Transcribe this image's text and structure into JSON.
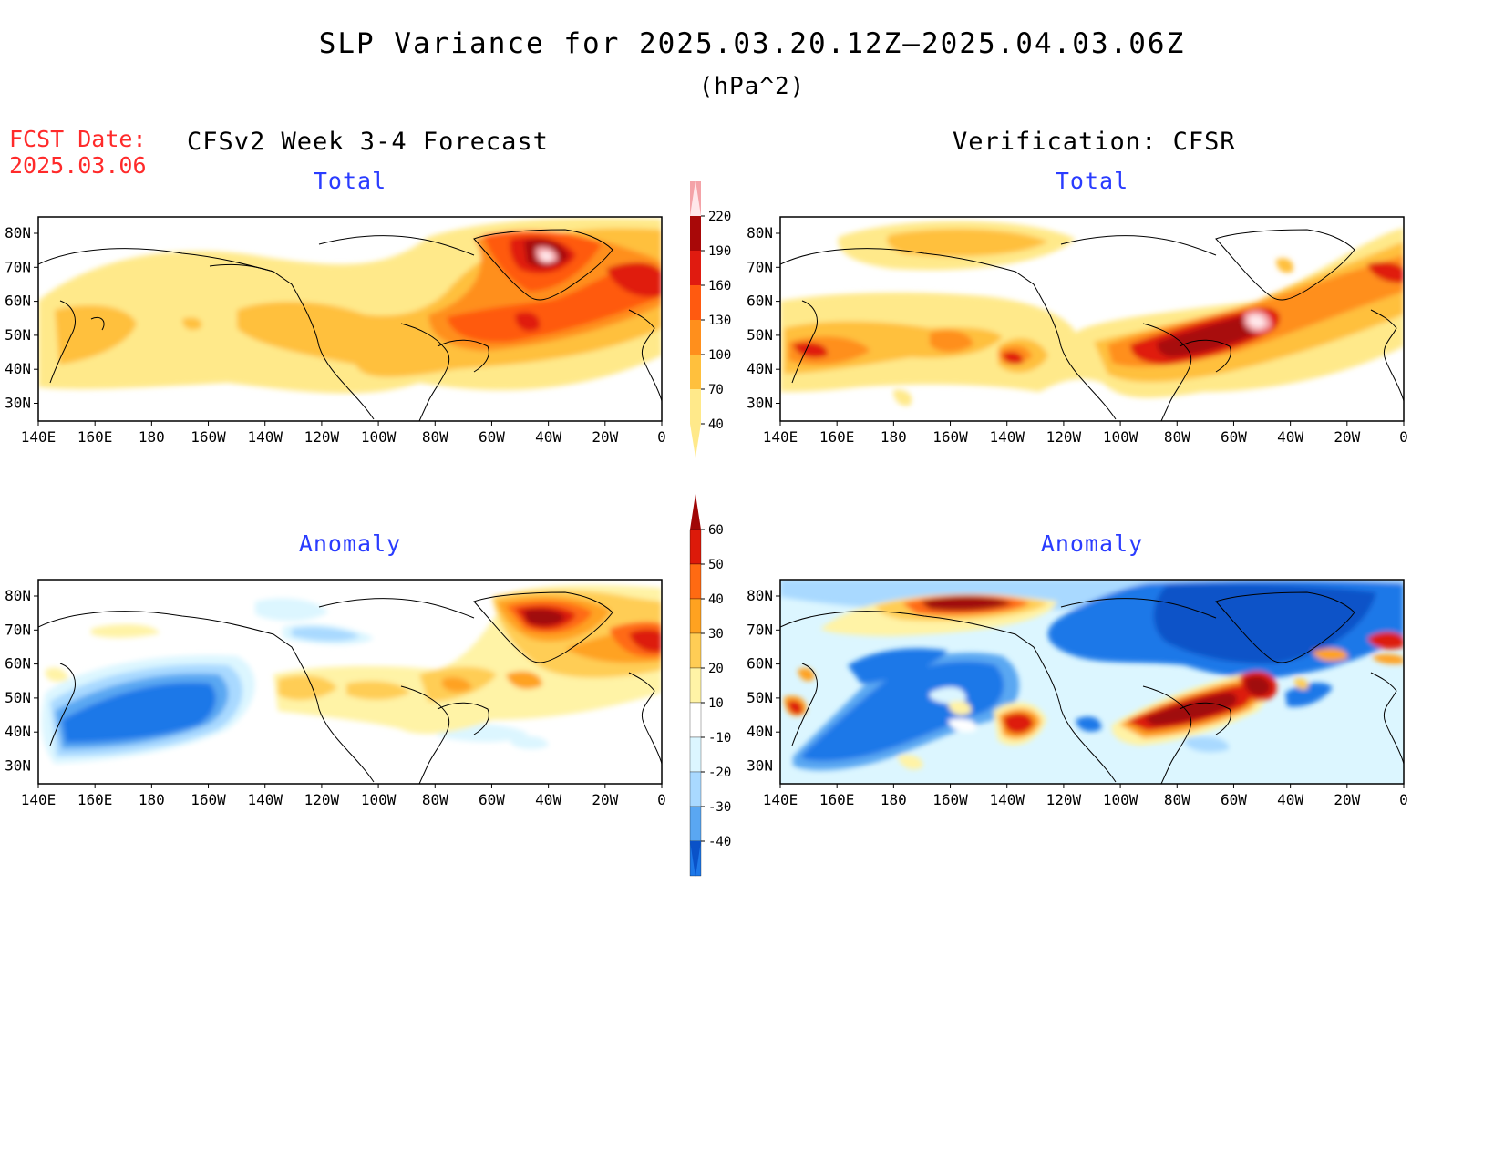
{
  "title": "SLP Variance for 2025.03.20.12Z—2025.04.03.06Z",
  "units": "(hPa^2)",
  "fcst_date_label": "FCST Date:",
  "fcst_date_value": "2025.03.06",
  "left_header": "CFSv2 Week 3-4 Forecast",
  "right_header": "Verification: CFSR",
  "panels": [
    {
      "id": "fcst-total",
      "title": "Total"
    },
    {
      "id": "verif-total",
      "title": "Total"
    },
    {
      "id": "fcst-anomaly",
      "title": "Anomaly"
    },
    {
      "id": "verif-anomaly",
      "title": "Anomaly"
    }
  ],
  "lat_labels": [
    "80N",
    "70N",
    "60N",
    "50N",
    "40N",
    "30N"
  ],
  "lon_labels": [
    "140E",
    "160E",
    "180",
    "160W",
    "140W",
    "120W",
    "100W",
    "80W",
    "60W",
    "40W",
    "20W",
    "0"
  ],
  "total_colorbar": {
    "levels": [
      "40",
      "70",
      "100",
      "130",
      "160",
      "190",
      "220"
    ],
    "colors": [
      "#ffe98a",
      "#ffc03d",
      "#ff8f1c",
      "#ff5a10",
      "#e01b10",
      "#a80808",
      "#f4a3a8",
      "#ffe7ea"
    ]
  },
  "anomaly_colorbar": {
    "levels": [
      "60",
      "50",
      "40",
      "30",
      "20",
      "10",
      "-10",
      "-20",
      "-30",
      "-40"
    ],
    "colors_top_to_bottom": [
      "#a00707",
      "#dd1a0a",
      "#ff6a12",
      "#ffa220",
      "#ffcd55",
      "#fff3a6",
      "#ffffff",
      "#dcf6ff",
      "#a9d9ff",
      "#5aa7f2",
      "#1e78e8",
      "#0a52c8"
    ]
  },
  "chart_data": [
    {
      "type": "heatmap",
      "panel": "CFSv2 Week 3-4 Forecast — Total",
      "units": "hPa^2",
      "lon_range": [
        "140E",
        "0"
      ],
      "lat_range": [
        "25N",
        "85N"
      ],
      "levels": [
        40,
        70,
        100,
        130,
        160,
        190,
        220
      ],
      "features": [
        {
          "region": "near 40W, 72N (Greenland)",
          "value_range": [
            190,
            250
          ]
        },
        {
          "region": "near 50W, 53N (Labrador Sea)",
          "value_range": [
            130,
            160
          ]
        },
        {
          "region": "North Atlantic 60W-0, 45N-70N",
          "value_range": [
            100,
            160
          ]
        },
        {
          "region": "North Pacific 150E-120W, 40N-55N",
          "value_range": [
            70,
            100
          ]
        }
      ]
    },
    {
      "type": "heatmap",
      "panel": "Verification: CFSR — Total",
      "units": "hPa^2",
      "lon_range": [
        "140E",
        "0"
      ],
      "lat_range": [
        "25N",
        "85N"
      ],
      "levels": [
        40,
        70,
        100,
        130,
        160,
        190,
        220
      ],
      "features": [
        {
          "region": "near 52W, 51N (Newfoundland)",
          "value_range": [
            190,
            250
          ]
        },
        {
          "region": "near 80W-60W, 45N",
          "value_range": [
            160,
            190
          ]
        },
        {
          "region": "near 170E, 45N",
          "value_range": [
            130,
            160
          ]
        },
        {
          "region": "near 150W-160W, 80N",
          "value_range": [
            70,
            100
          ]
        },
        {
          "region": "near 140W, 41N",
          "value_range": [
            130,
            160
          ]
        }
      ]
    },
    {
      "type": "heatmap",
      "panel": "CFSv2 Week 3-4 Forecast — Anomaly",
      "units": "hPa^2",
      "lon_range": [
        "140E",
        "0"
      ],
      "lat_range": [
        "25N",
        "85N"
      ],
      "levels": [
        -40,
        -30,
        -20,
        -10,
        10,
        20,
        30,
        40,
        50,
        60
      ],
      "features": [
        {
          "region": "North Pacific 150E-160W, 35N-55N",
          "value_range": [
            -50,
            -30
          ]
        },
        {
          "region": "near 40W, 72N (Greenland)",
          "value_range": [
            50,
            70
          ]
        },
        {
          "region": "near 10W, 65N",
          "value_range": [
            40,
            60
          ]
        },
        {
          "region": "near 70W, 50N",
          "value_range": [
            20,
            40
          ]
        }
      ]
    },
    {
      "type": "heatmap",
      "panel": "Verification: CFSR — Anomaly",
      "units": "hPa^2",
      "lon_range": [
        "140E",
        "0"
      ],
      "lat_range": [
        "25N",
        "85N"
      ],
      "levels": [
        -40,
        -30,
        -20,
        -10,
        10,
        20,
        30,
        40,
        50,
        60
      ],
      "features": [
        {
          "region": "near 150W, 78N",
          "value_range": [
            50,
            70
          ]
        },
        {
          "region": "near 75W, 45N",
          "value_range": [
            50,
            70
          ]
        },
        {
          "region": "near 52W, 51N",
          "value_range": [
            50,
            70
          ]
        },
        {
          "region": "near 138W, 42N",
          "value_range": [
            50,
            60
          ]
        },
        {
          "region": "North Pacific 150E-140W, 35N-60N",
          "value_range": [
            -50,
            -30
          ]
        },
        {
          "region": "Canada / Arctic 120W-40W, 55N-85N",
          "value_range": [
            -50,
            -30
          ]
        }
      ]
    }
  ]
}
